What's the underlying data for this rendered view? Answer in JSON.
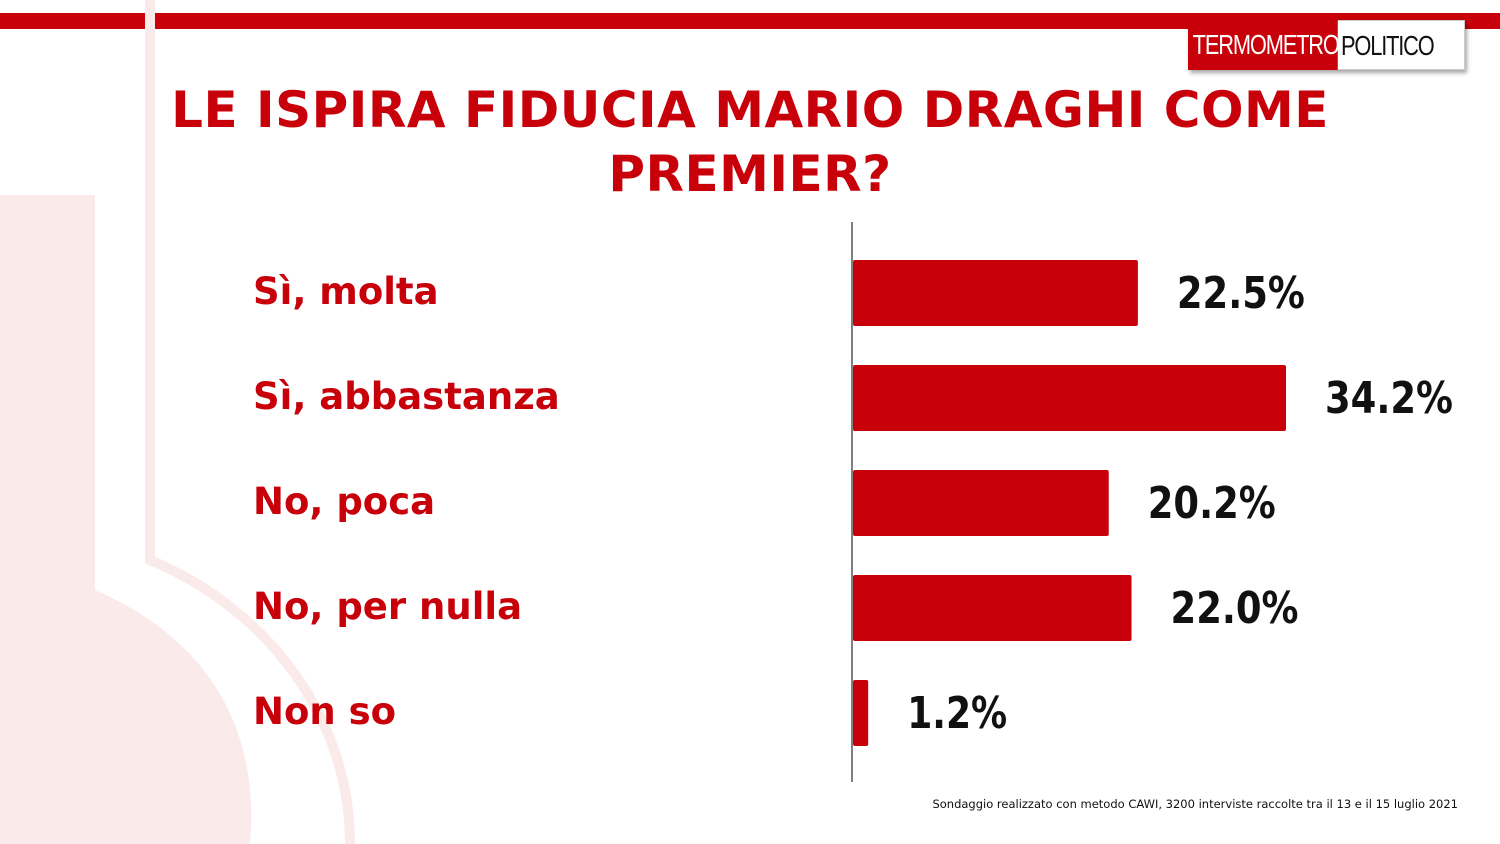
{
  "brand": {
    "logo_left": "TERMOMETRO",
    "logo_right": "POLITICO"
  },
  "colors": {
    "accent": "#c8000a",
    "deco": "#fbeaea",
    "text": "#111111"
  },
  "chart_data": {
    "type": "bar",
    "orientation": "horizontal",
    "title": "LE ISPIRA FIDUCIA MARIO DRAGHI COME PREMIER?",
    "categories": [
      "Sì, molta",
      "Sì, abbastanza",
      "No, poca",
      "No, per nulla",
      "Non so"
    ],
    "values": [
      22.5,
      34.2,
      20.2,
      22.0,
      1.2
    ],
    "value_labels": [
      "22.5%",
      "34.2%",
      "20.2%",
      "22.0%",
      "1.2%"
    ],
    "unit": "%",
    "xlim": [
      0,
      34.2
    ],
    "grid": false,
    "legend": "none"
  },
  "footnote": "Sondaggio realizzato con metodo CAWI, 3200 interviste raccolte tra il 13 e il 15 luglio 2021"
}
